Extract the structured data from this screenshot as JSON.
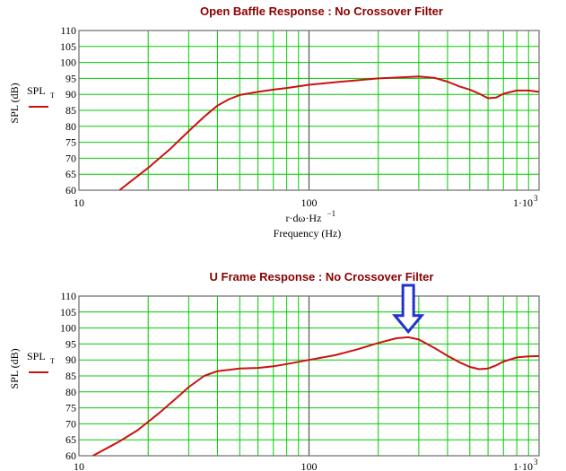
{
  "theme": {
    "grid_color": "#00cc00",
    "curve_color": "#cc1111",
    "title_color": "#8b0000",
    "arrow_color": "#2233cc"
  },
  "chart_data": [
    {
      "type": "line",
      "title": "Open Baffle Response : No Crossover Filter",
      "ylabel": "SPL (dB)",
      "xlabel_line1": "r·dω·Hz",
      "xlabel_sup": "−1",
      "xlabel_line2": "Frequency (Hz)",
      "xscale": "log",
      "xlim": [
        10,
        1000
      ],
      "ylim": [
        60,
        110
      ],
      "y_ticks": [
        60,
        65,
        70,
        75,
        80,
        85,
        90,
        95,
        100,
        105,
        110
      ],
      "x_tick_labels": [
        "10",
        "100",
        "1·10"
      ],
      "x_tick_sup": "3",
      "grid": true,
      "legend": {
        "label": "SPL",
        "subscript": "T",
        "placement": "left"
      },
      "series": [
        {
          "x": [
            15,
            20,
            25,
            30,
            35,
            40,
            45,
            50,
            60,
            70,
            80,
            100,
            150,
            200,
            250,
            300,
            350,
            400,
            450,
            500,
            550,
            600,
            650,
            700,
            800,
            900,
            1000
          ],
          "y": [
            60,
            67,
            73,
            78.5,
            83,
            86.5,
            88.5,
            89.8,
            90.8,
            91.5,
            92,
            93,
            94.2,
            95,
            95.3,
            95.6,
            95.2,
            94,
            92.5,
            91.5,
            90.2,
            88.8,
            89,
            90.2,
            91.2,
            91.2,
            90.8
          ]
        }
      ]
    },
    {
      "type": "line",
      "title": "U Frame Response : No Crossover Filter",
      "ylabel": "SPL (dB)",
      "xscale": "log",
      "xlim": [
        10,
        1000
      ],
      "ylim": [
        60,
        110
      ],
      "y_ticks": [
        60,
        65,
        70,
        75,
        80,
        85,
        90,
        95,
        100,
        105,
        110
      ],
      "x_tick_labels": [
        "10",
        "100",
        "1·10"
      ],
      "x_tick_sup": "3",
      "grid": true,
      "legend": {
        "label": "SPL",
        "subscript": "T",
        "placement": "left"
      },
      "annotation": {
        "type": "down-arrow",
        "x": 270,
        "y_tip": 98
      },
      "series": [
        {
          "x": [
            11.5,
            15,
            18,
            22,
            26,
            30,
            35,
            40,
            50,
            60,
            70,
            80,
            100,
            130,
            160,
            200,
            240,
            270,
            300,
            350,
            400,
            450,
            500,
            550,
            600,
            650,
            700,
            800,
            900,
            1000
          ],
          "y": [
            60,
            64.5,
            68,
            73,
            77.5,
            81.5,
            85,
            86.5,
            87.3,
            87.5,
            88,
            88.7,
            90,
            91.5,
            93.2,
            95.3,
            96.8,
            97.1,
            96.4,
            93.8,
            91.3,
            89.3,
            87.8,
            87.1,
            87.3,
            88.3,
            89.5,
            90.8,
            91.1,
            91.2
          ]
        }
      ]
    }
  ]
}
